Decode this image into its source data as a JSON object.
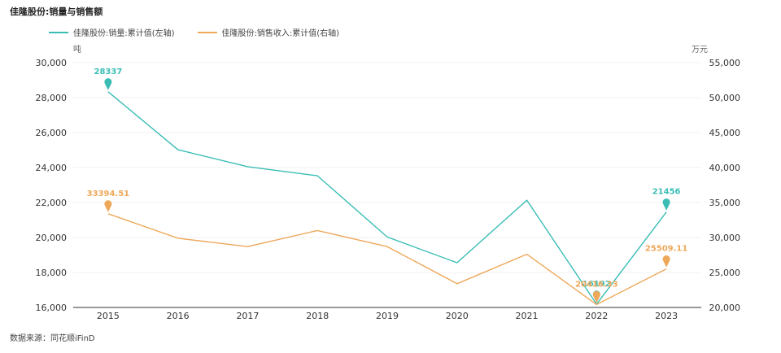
{
  "page": {
    "title": "佳隆股份:销量与销售额",
    "source": "数据来源：同花顺iFinD"
  },
  "colors": {
    "series1": "#3bbdb5",
    "series2": "#eea85a",
    "axis": "#333333",
    "grid": "#f0f0f0"
  },
  "chart_data": {
    "type": "line",
    "title": "佳隆股份:销量与销售额",
    "categories": [
      "2015",
      "2016",
      "2017",
      "2018",
      "2019",
      "2020",
      "2021",
      "2022",
      "2023"
    ],
    "left_unit": "吨",
    "right_unit": "万元",
    "left_ylim": [
      16000,
      30000
    ],
    "right_ylim": [
      20000,
      55000
    ],
    "left_ticks": [
      "16,000",
      "18,000",
      "20,000",
      "22,000",
      "24,000",
      "26,000",
      "28,000",
      "30,000"
    ],
    "right_ticks": [
      "20,000",
      "25,000",
      "30,000",
      "35,000",
      "40,000",
      "45,000",
      "50,000",
      "55,000"
    ],
    "series": [
      {
        "name": "佳隆股份:销量:累计值(左轴)",
        "axis": "left",
        "values": [
          28337,
          25020,
          24050,
          23530,
          20030,
          18560,
          22130,
          16192,
          21456
        ]
      },
      {
        "name": "佳隆股份:销售收入:累计值(右轴)",
        "axis": "right",
        "values": [
          33394.51,
          29900,
          28700,
          31000,
          28700,
          23400,
          27600,
          20416.33,
          25509.11
        ]
      }
    ],
    "annotations": [
      {
        "series": 0,
        "index": 0,
        "label": "28337"
      },
      {
        "series": 0,
        "index": 7,
        "label": "16192"
      },
      {
        "series": 0,
        "index": 8,
        "label": "21456"
      },
      {
        "series": 1,
        "index": 0,
        "label": "33394.51"
      },
      {
        "series": 1,
        "index": 7,
        "label": "20416.33"
      },
      {
        "series": 1,
        "index": 8,
        "label": "25509.11"
      }
    ]
  }
}
